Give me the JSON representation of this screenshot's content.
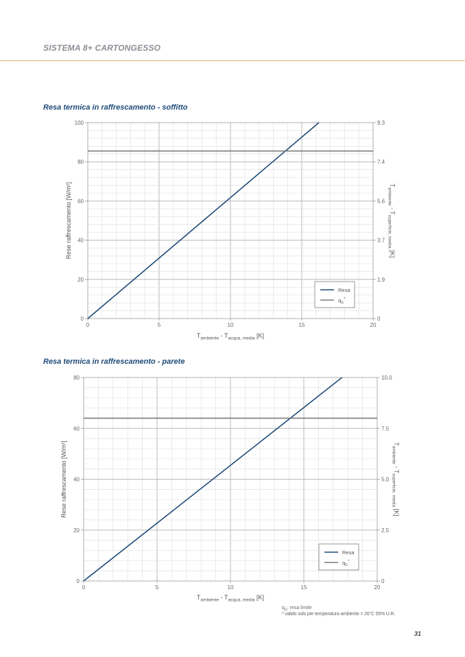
{
  "header": {
    "title": "SISTEMA 8+ CARTONGESSO"
  },
  "colors": {
    "accent_rule": "#e3b26a",
    "title": "#1d4a78",
    "series_resa": "#1d4a78",
    "series_qg": "#7a7a7a",
    "grid_major": "#b9b9b9",
    "grid_minor": "#e2e2e2"
  },
  "chart_data": [
    {
      "type": "line",
      "title": "Resa termica in raffrescamento - soffitto",
      "xlabel": {
        "main": "T",
        "sub1": "ambiente",
        "mid": " - T",
        "sub2": "acqua, media",
        "end": " [K]"
      },
      "ylabel": "Rese raffrescamento [W/m²]",
      "y2label": {
        "main": "T",
        "sub1": "ambiente",
        "mid": " - T",
        "sub2": "superficie, media",
        "end": " [K]"
      },
      "xlim": [
        0,
        20
      ],
      "ylim": [
        0,
        100
      ],
      "xticks": [
        "0",
        "5",
        "10",
        "15",
        "20"
      ],
      "yticks": [
        "0",
        "20",
        "40",
        "60",
        "80",
        "100"
      ],
      "y2ticks": [
        "0",
        "1.9",
        "3.7",
        "5.6",
        "7.4",
        "9.3"
      ],
      "grid": true,
      "legend_position": "bottom-right",
      "series": [
        {
          "name": "Resa",
          "x": [
            0,
            16.2
          ],
          "y": [
            0,
            100
          ]
        },
        {
          "name": "q",
          "name_sub": "G",
          "name_sup": "*",
          "x": [
            0,
            20
          ],
          "y": [
            85.5,
            85.5
          ]
        }
      ]
    },
    {
      "type": "line",
      "title": "Resa termica in raffrescamento - parete",
      "xlabel": {
        "main": "T",
        "sub1": "ambiente",
        "mid": " - T",
        "sub2": "acqua, media",
        "end": " [K]"
      },
      "ylabel": "Rese raffrescamento [W/m²]",
      "y2label": {
        "main": "T",
        "sub1": "ambiente",
        "mid": " - T",
        "sub2": "superficie, media",
        "end": " [K]"
      },
      "xlim": [
        0,
        20
      ],
      "ylim": [
        0,
        80
      ],
      "xticks": [
        "0",
        "5",
        "10",
        "15",
        "20"
      ],
      "yticks": [
        "0",
        "20",
        "40",
        "60",
        "80"
      ],
      "y2ticks": [
        "0",
        "2.5",
        "5.0",
        "7.5",
        "10.0"
      ],
      "grid": true,
      "legend_position": "bottom-right",
      "series": [
        {
          "name": "Resa",
          "x": [
            0,
            17.6
          ],
          "y": [
            0,
            80
          ]
        },
        {
          "name": "q",
          "name_sub": "G",
          "name_sup": "*",
          "x": [
            0,
            20
          ],
          "y": [
            64,
            64
          ]
        }
      ]
    }
  ],
  "footnotes": {
    "line1": "q",
    "line1_sub": "G",
    "line1_rest": ": resa limite",
    "line2": "* valido solo per temperatura ambiente = 26°C 55% U.R."
  },
  "page_number": "31"
}
